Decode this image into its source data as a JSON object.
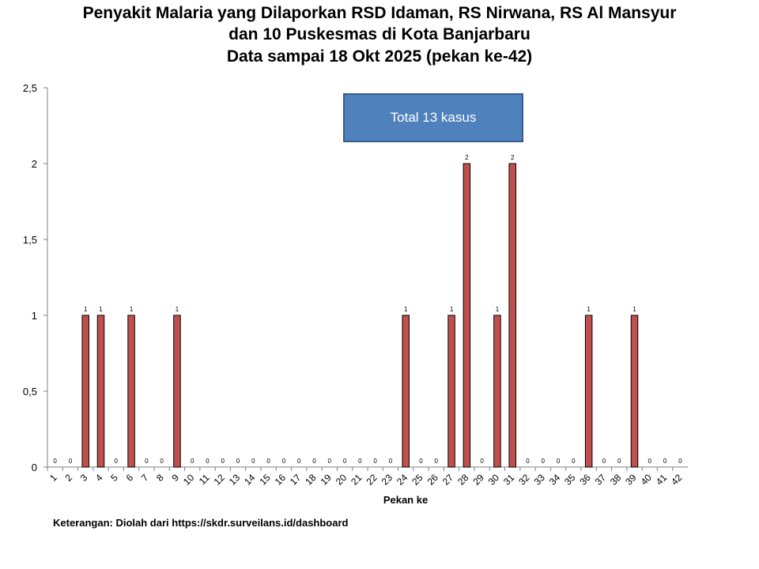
{
  "title_lines": [
    "Penyakit Malaria yang Dilaporkan RSD Idaman, RS Nirwana, RS Al Mansyur",
    "dan 10 Puskesmas di Kota Banjarbaru",
    "Data sampai 18 Okt 2025 (pekan ke-42)"
  ],
  "total_box": "Total 13 kasus",
  "note": "Keterangan: Diolah dari https://skdr.surveilans.id/dashboard",
  "colors": {
    "bar": "#c0504d",
    "bar_stroke": "#000000",
    "box": "#4f81bd"
  },
  "chart_data": {
    "type": "bar",
    "xlabel": "Pekan ke",
    "ylabel": "",
    "ylim": [
      0,
      2.5
    ],
    "yticks": [
      "0",
      "0,5",
      "1",
      "1,5",
      "2",
      "2,5"
    ],
    "categories": [
      "1",
      "2",
      "3",
      "4",
      "5",
      "6",
      "7",
      "8",
      "9",
      "10",
      "11",
      "12",
      "13",
      "14",
      "15",
      "16",
      "17",
      "18",
      "19",
      "20",
      "21",
      "22",
      "23",
      "24",
      "25",
      "26",
      "27",
      "28",
      "29",
      "30",
      "31",
      "32",
      "33",
      "34",
      "35",
      "36",
      "37",
      "38",
      "39",
      "40",
      "41",
      "42"
    ],
    "values": [
      0,
      0,
      1,
      1,
      0,
      1,
      0,
      0,
      1,
      0,
      0,
      0,
      0,
      0,
      0,
      0,
      0,
      0,
      0,
      0,
      0,
      0,
      0,
      1,
      0,
      0,
      1,
      2,
      0,
      1,
      2,
      0,
      0,
      0,
      0,
      1,
      0,
      0,
      1,
      0,
      0,
      0
    ],
    "grid": false,
    "data_labels": true
  }
}
